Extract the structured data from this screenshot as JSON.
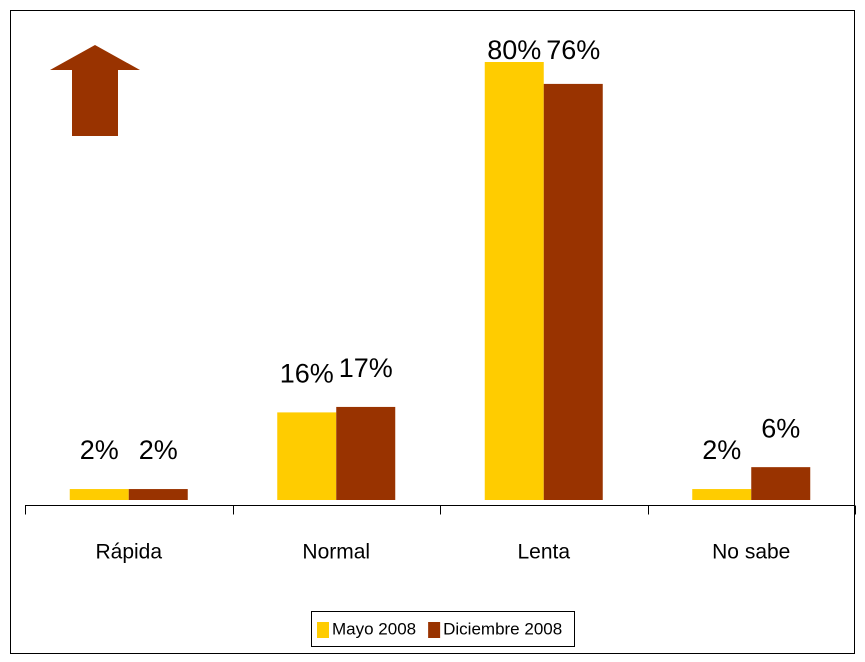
{
  "chart_data": {
    "type": "bar",
    "categories": [
      "Rápida",
      "Normal",
      "Lenta",
      "No sabe"
    ],
    "series": [
      {
        "name": "Mayo 2008",
        "color": "#FFCC00",
        "values": [
          2,
          16,
          80,
          2
        ],
        "value_labels": [
          "2%",
          "16%",
          "80%",
          "2%"
        ]
      },
      {
        "name": "Diciembre 2008",
        "color": "#993300",
        "values": [
          2,
          17,
          76,
          6
        ],
        "value_labels": [
          "2%",
          "17%",
          "76%",
          "6%"
        ]
      }
    ]
  }
}
